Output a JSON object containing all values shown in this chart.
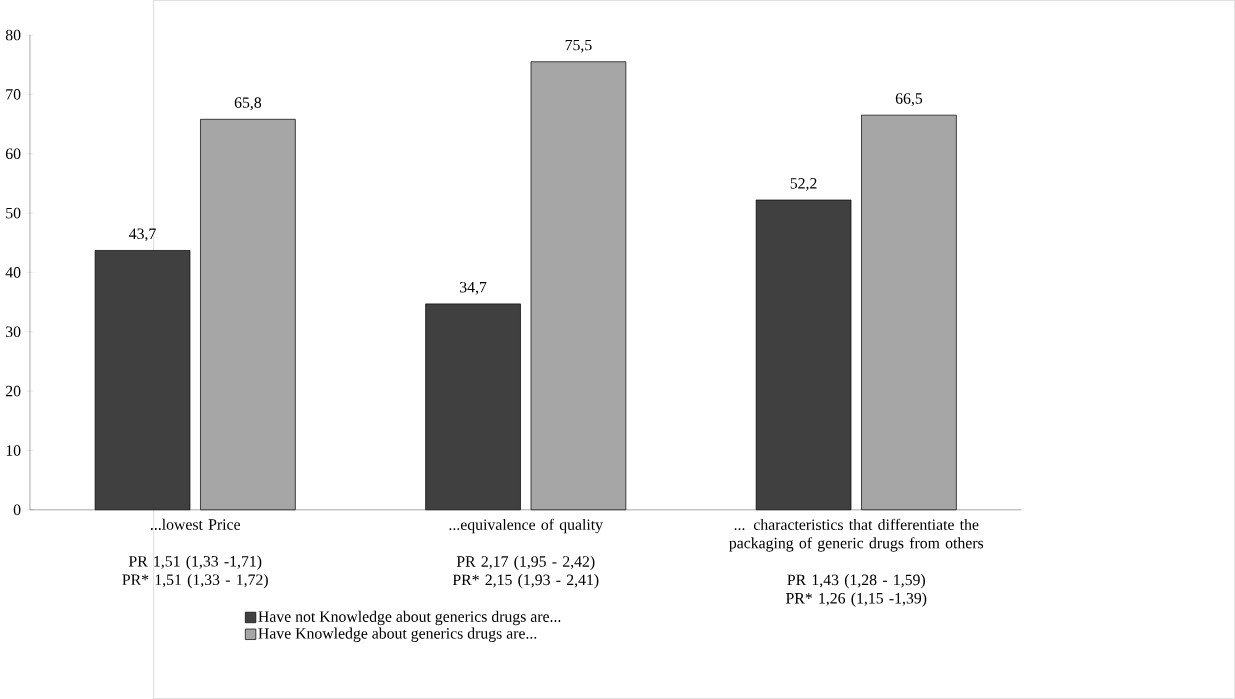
{
  "chart_data": {
    "type": "bar",
    "categories": [
      "...lowest Price",
      "...equivalence of quality",
      "... characteristics that differentiate the packaging of generic drugs from others"
    ],
    "series": [
      {
        "name": "Have not Knowledge about generics drugs are...",
        "color": "#404040",
        "values": [
          43.7,
          34.7,
          52.2
        ],
        "value_labels": [
          "43,7",
          "34,7",
          "52,2"
        ]
      },
      {
        "name": "Have Knowledge about generics drugs are...",
        "color": "#a6a6a6",
        "values": [
          65.8,
          75.5,
          66.5
        ],
        "value_labels": [
          "65,8",
          "75,5",
          "66,5"
        ]
      }
    ],
    "annotations": [
      "PR 1,51 (1,33 -1,71)",
      "PR* 1,51 (1,33 - 1,72)",
      "PR 2,17 (1,95 - 2,42)",
      "PR* 2,15 (1,93 - 2,41)",
      "PR 1,43 (1,28 - 1,59)",
      "PR* 1,26 (1,15 -1,39)"
    ],
    "ylim": [
      0,
      80
    ],
    "yticks": [
      0,
      10,
      20,
      30,
      40,
      50,
      60,
      70,
      80
    ],
    "grid": false,
    "legend": "bottom"
  }
}
